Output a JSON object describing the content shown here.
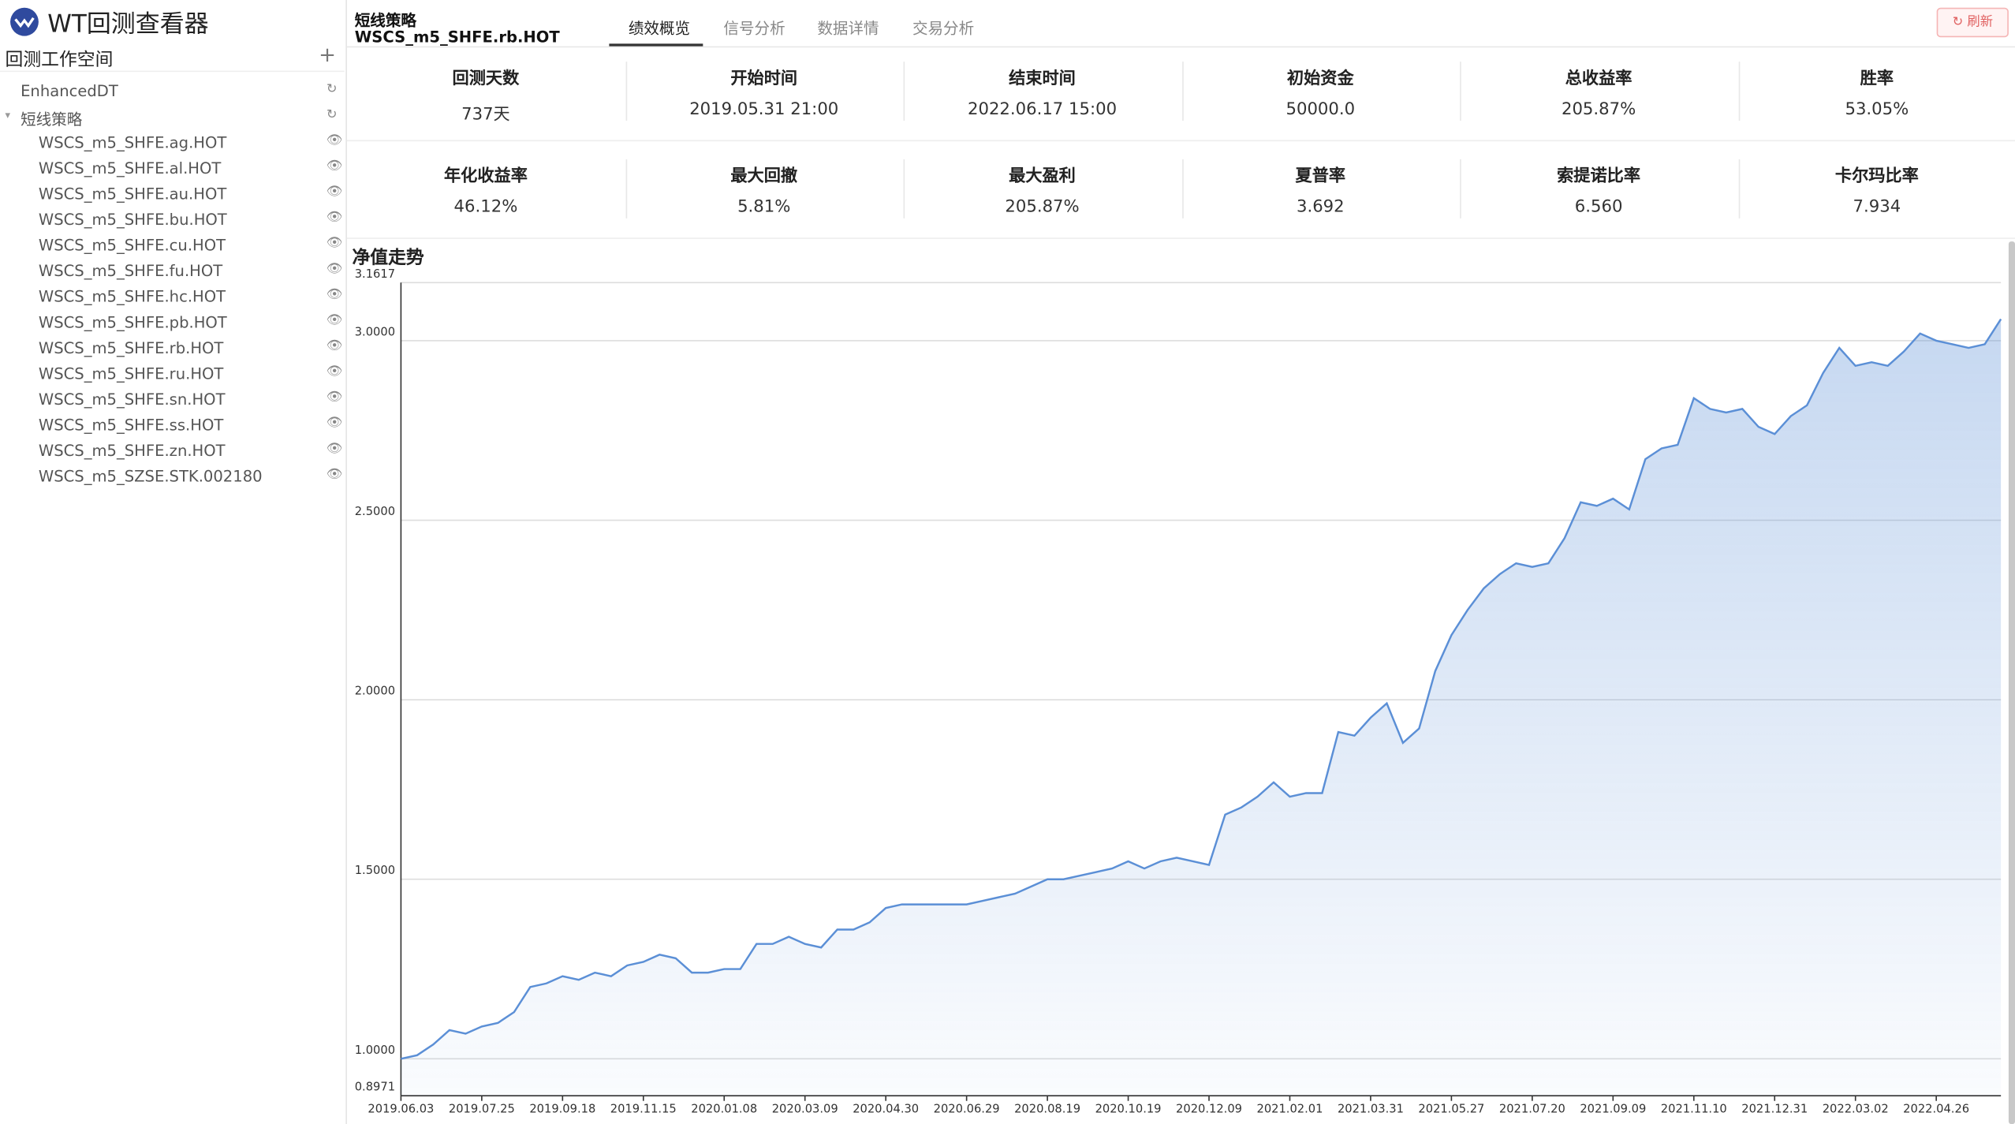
{
  "app": {
    "title": "WT回测查看器"
  },
  "sidebar": {
    "title": "回测工作空间",
    "nodes": [
      {
        "label": "EnhancedDT"
      },
      {
        "label": "短线策略",
        "children": [
          "WSCS_m5_SHFE.ag.HOT",
          "WSCS_m5_SHFE.al.HOT",
          "WSCS_m5_SHFE.au.HOT",
          "WSCS_m5_SHFE.bu.HOT",
          "WSCS_m5_SHFE.cu.HOT",
          "WSCS_m5_SHFE.fu.HOT",
          "WSCS_m5_SHFE.hc.HOT",
          "WSCS_m5_SHFE.pb.HOT",
          "WSCS_m5_SHFE.rb.HOT",
          "WSCS_m5_SHFE.ru.HOT",
          "WSCS_m5_SHFE.sn.HOT",
          "WSCS_m5_SHFE.ss.HOT",
          "WSCS_m5_SHFE.zn.HOT",
          "WSCS_m5_SZSE.STK.002180"
        ]
      }
    ]
  },
  "header": {
    "strategy": "短线策略",
    "instrument": "WSCS_m5_SHFE.rb.HOT",
    "refresh": "刷新"
  },
  "tabs": [
    "绩效概览",
    "信号分析",
    "数据详情",
    "交易分析"
  ],
  "metrics": [
    {
      "label": "回测天数",
      "value": "737天"
    },
    {
      "label": "开始时间",
      "value": "2019.05.31 21:00"
    },
    {
      "label": "结束时间",
      "value": "2022.06.17 15:00"
    },
    {
      "label": "初始资金",
      "value": "50000.0"
    },
    {
      "label": "总收益率",
      "value": "205.87%"
    },
    {
      "label": "胜率",
      "value": "53.05%"
    },
    {
      "label": "年化收益率",
      "value": "46.12%"
    },
    {
      "label": "最大回撤",
      "value": "5.81%"
    },
    {
      "label": "最大盈利",
      "value": "205.87%"
    },
    {
      "label": "夏普率",
      "value": "3.692"
    },
    {
      "label": "索提诺比率",
      "value": "6.560"
    },
    {
      "label": "卡尔玛比率",
      "value": "7.934"
    }
  ],
  "chart_data": {
    "type": "area",
    "title": "净值走势",
    "categories": [
      "2019.06.03",
      null,
      null,
      null,
      null,
      "2019.07.25",
      null,
      null,
      null,
      null,
      "2019.09.18",
      null,
      null,
      null,
      null,
      "2019.11.15",
      null,
      null,
      null,
      null,
      "2020.01.08",
      null,
      null,
      null,
      null,
      "2020.03.09",
      null,
      null,
      null,
      null,
      "2020.04.30",
      null,
      null,
      null,
      null,
      "2020.06.29",
      null,
      null,
      null,
      null,
      "2020.08.19",
      null,
      null,
      null,
      null,
      "2020.10.19",
      null,
      null,
      null,
      null,
      "2020.12.09",
      null,
      null,
      null,
      null,
      "2021.02.01",
      null,
      null,
      null,
      null,
      "2021.03.31",
      null,
      null,
      null,
      null,
      "2021.05.27",
      null,
      null,
      null,
      null,
      "2021.07.20",
      null,
      null,
      null,
      null,
      "2021.09.09",
      null,
      null,
      null,
      null,
      "2021.11.10",
      null,
      null,
      null,
      null,
      "2021.12.31",
      null,
      null,
      null,
      null,
      "2022.03.02",
      null,
      null,
      null,
      null,
      "2022.04.26",
      null,
      null,
      null,
      null
    ],
    "values": [
      1.0,
      1.01,
      1.04,
      1.08,
      1.07,
      1.09,
      1.1,
      1.13,
      1.2,
      1.21,
      1.23,
      1.22,
      1.24,
      1.23,
      1.26,
      1.27,
      1.29,
      1.28,
      1.24,
      1.24,
      1.25,
      1.25,
      1.32,
      1.32,
      1.34,
      1.32,
      1.31,
      1.36,
      1.36,
      1.38,
      1.42,
      1.43,
      1.43,
      1.43,
      1.43,
      1.43,
      1.44,
      1.45,
      1.46,
      1.48,
      1.5,
      1.5,
      1.51,
      1.52,
      1.53,
      1.55,
      1.53,
      1.55,
      1.56,
      1.55,
      1.54,
      1.68,
      1.7,
      1.73,
      1.77,
      1.73,
      1.74,
      1.74,
      1.91,
      1.9,
      1.95,
      1.99,
      1.88,
      1.92,
      2.08,
      2.18,
      2.25,
      2.31,
      2.35,
      2.38,
      2.37,
      2.38,
      2.45,
      2.55,
      2.54,
      2.56,
      2.53,
      2.67,
      2.7,
      2.71,
      2.84,
      2.81,
      2.8,
      2.81,
      2.76,
      2.74,
      2.79,
      2.82,
      2.91,
      2.98,
      2.93,
      2.94,
      2.93,
      2.97,
      3.02,
      3.0,
      2.99,
      2.98,
      2.99,
      3.06
    ],
    "color": "#5b8fd6",
    "ylim": [
      0.8971,
      3.1617
    ],
    "yticks": [
      {
        "value": 0.8971,
        "label": "0.8971"
      },
      {
        "value": 1,
        "label": "1.0000"
      },
      {
        "value": 1.5,
        "label": "1.5000"
      },
      {
        "value": 2,
        "label": "2.0000"
      },
      {
        "value": 2.5,
        "label": "2.5000"
      },
      {
        "value": 3,
        "label": "3.0000"
      },
      {
        "value": 3.1617,
        "label": "3.1617"
      }
    ],
    "grid": true
  }
}
